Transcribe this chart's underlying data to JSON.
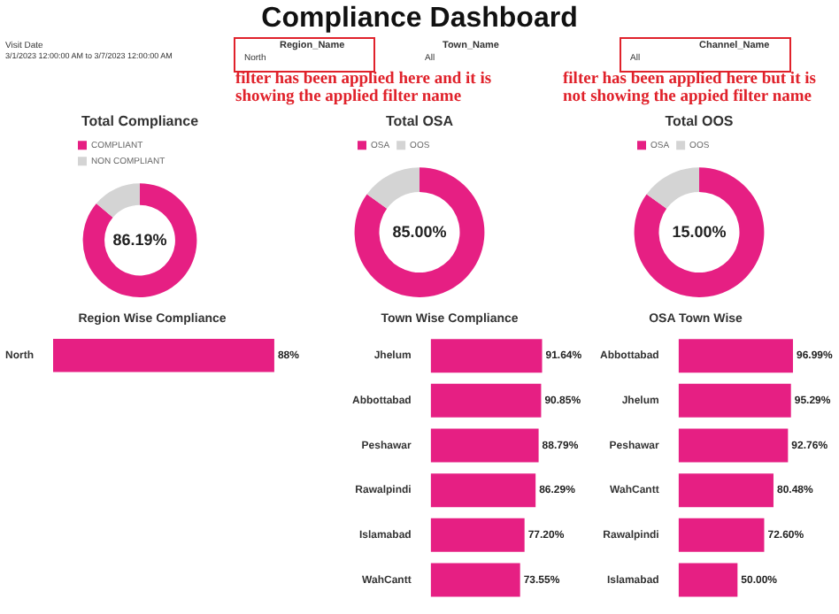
{
  "chart_data": [
    {
      "type": "other",
      "title": "Compliance Dashboard",
      "annotations": [
        "Visit Date",
        "3/1/2023 12:00:00 AM to 3/7/2023 12:00:00 AM",
        "Region_Name",
        "North",
        "Town_Name",
        "All",
        "Channel_Name",
        "All",
        "filter has been applied here and it is showing the applied filter name",
        "filter has been applied here but it is not showing the appied filter name"
      ]
    },
    {
      "type": "donut",
      "title": "Total Compliance",
      "categories": [
        "COMPLIANT",
        "NON COMPLIANT"
      ],
      "values": [
        86.19,
        13.81
      ],
      "colors": [
        "#e61f83",
        "#d4d4d4"
      ],
      "legend": "top left",
      "annotations": [
        "86.19%"
      ]
    },
    {
      "type": "donut",
      "title": "Total OSA",
      "categories": [
        "OSA",
        "OOS"
      ],
      "values": [
        85,
        15
      ],
      "colors": [
        "#e61f83",
        "#d4d4d4"
      ],
      "legend": "top left",
      "annotations": [
        "85.00%"
      ]
    },
    {
      "type": "donut",
      "title": "Total OOS",
      "categories": [
        "OSA",
        "OOS"
      ],
      "values": [
        85,
        15
      ],
      "colors": [
        "#e61f83",
        "#d4d4d4"
      ],
      "legend": "top left",
      "annotations": [
        "15.00%"
      ]
    },
    {
      "type": "bar",
      "orientation": "horizontal",
      "title": "Region Wise Compliance",
      "categories": [
        "North"
      ],
      "values": [
        88
      ],
      "color": "#e61f83",
      "value_labels": [
        "88%"
      ]
    },
    {
      "type": "bar",
      "orientation": "horizontal",
      "title": "Town Wise Compliance",
      "categories": [
        "Jhelum",
        "Abbottabad",
        "Peshawar",
        "Rawalpindi",
        "Islamabad",
        "WahCantt"
      ],
      "values": [
        91.64,
        90.85,
        88.79,
        86.29,
        77.2,
        73.55
      ],
      "color": "#e61f83",
      "value_labels": [
        "91.64%",
        "90.85%",
        "88.79%",
        "86.29%",
        "77.20%",
        "73.55%"
      ]
    },
    {
      "type": "bar",
      "orientation": "horizontal",
      "title": "OSA Town Wise",
      "categories": [
        "Abbottabad",
        "Jhelum",
        "Peshawar",
        "WahCantt",
        "Rawalpindi",
        "Islamabad"
      ],
      "values": [
        96.99,
        95.29,
        92.76,
        80.48,
        72.6,
        50
      ],
      "color": "#e61f83",
      "value_labels": [
        "96.99%",
        "95.29%",
        "92.76%",
        "80.48%",
        "72.60%",
        "50.00%"
      ]
    }
  ]
}
